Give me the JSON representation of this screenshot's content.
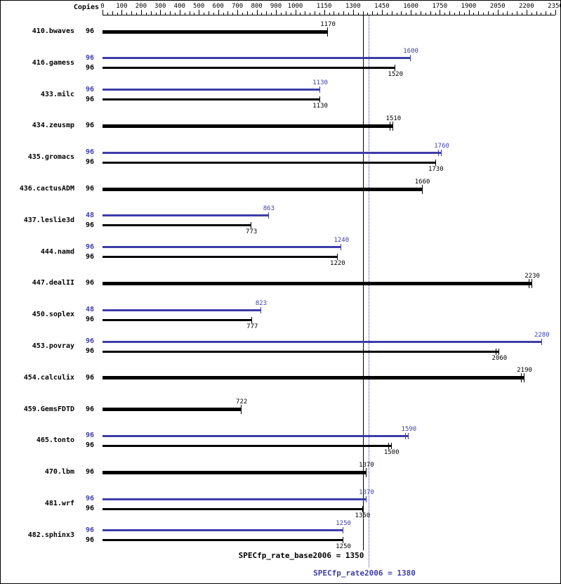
{
  "colors": {
    "peak": "#3d3daa",
    "base": "#000000"
  },
  "chart_data": {
    "type": "bar",
    "orientation": "horizontal",
    "copies_column_header": "Copies",
    "axis": {
      "position": "top",
      "min": 0,
      "max": 2350,
      "minor_step": 25,
      "tick_labels": [
        0,
        100,
        200,
        300,
        400,
        500,
        600,
        700,
        800,
        900,
        1000,
        1150,
        1300,
        1450,
        1600,
        1750,
        1900,
        2050,
        2200,
        2350
      ]
    },
    "benchmarks": [
      {
        "name": "410.bwaves",
        "bars": [
          {
            "series": "base",
            "copies": 96,
            "value": 1170,
            "end_ticks": 1
          }
        ]
      },
      {
        "name": "416.gamess",
        "bars": [
          {
            "series": "peak",
            "copies": 96,
            "value": 1600,
            "end_ticks": 1
          },
          {
            "series": "base",
            "copies": 96,
            "value": 1520,
            "end_ticks": 1
          }
        ]
      },
      {
        "name": "433.milc",
        "bars": [
          {
            "series": "peak",
            "copies": 96,
            "value": 1130,
            "end_ticks": 1
          },
          {
            "series": "base",
            "copies": 96,
            "value": 1130,
            "end_ticks": 1
          }
        ]
      },
      {
        "name": "434.zeusmp",
        "bars": [
          {
            "series": "base",
            "copies": 96,
            "value": 1510,
            "end_ticks": 2
          }
        ]
      },
      {
        "name": "435.gromacs",
        "bars": [
          {
            "series": "peak",
            "copies": 96,
            "value": 1760,
            "end_ticks": 2
          },
          {
            "series": "base",
            "copies": 96,
            "value": 1730,
            "end_ticks": 1
          }
        ]
      },
      {
        "name": "436.cactusADM",
        "bars": [
          {
            "series": "base",
            "copies": 96,
            "value": 1660,
            "end_ticks": 1
          }
        ]
      },
      {
        "name": "437.leslie3d",
        "bars": [
          {
            "series": "peak",
            "copies": 48,
            "value": 863,
            "end_ticks": 1
          },
          {
            "series": "base",
            "copies": 96,
            "value": 773,
            "end_ticks": 1
          }
        ]
      },
      {
        "name": "444.namd",
        "bars": [
          {
            "series": "peak",
            "copies": 96,
            "value": 1240,
            "end_ticks": 1
          },
          {
            "series": "base",
            "copies": 96,
            "value": 1220,
            "end_ticks": 1
          }
        ]
      },
      {
        "name": "447.dealII",
        "bars": [
          {
            "series": "base",
            "copies": 96,
            "value": 2230,
            "end_ticks": 2
          }
        ]
      },
      {
        "name": "450.soplex",
        "bars": [
          {
            "series": "peak",
            "copies": 48,
            "value": 823,
            "end_ticks": 1
          },
          {
            "series": "base",
            "copies": 96,
            "value": 777,
            "end_ticks": 1
          }
        ]
      },
      {
        "name": "453.povray",
        "bars": [
          {
            "series": "peak",
            "copies": 96,
            "value": 2280,
            "end_ticks": 1
          },
          {
            "series": "base",
            "copies": 96,
            "value": 2060,
            "end_ticks": 2
          }
        ]
      },
      {
        "name": "454.calculix",
        "bars": [
          {
            "series": "base",
            "copies": 96,
            "value": 2190,
            "end_ticks": 2
          }
        ]
      },
      {
        "name": "459.GemsFDTD",
        "bars": [
          {
            "series": "base",
            "copies": 96,
            "value": 722,
            "end_ticks": 1
          }
        ]
      },
      {
        "name": "465.tonto",
        "bars": [
          {
            "series": "peak",
            "copies": 96,
            "value": 1590,
            "end_ticks": 2
          },
          {
            "series": "base",
            "copies": 96,
            "value": 1500,
            "end_ticks": 2
          }
        ]
      },
      {
        "name": "470.lbm",
        "bars": [
          {
            "series": "base",
            "copies": 96,
            "value": 1370,
            "end_ticks": 1
          }
        ]
      },
      {
        "name": "481.wrf",
        "bars": [
          {
            "series": "peak",
            "copies": 96,
            "value": 1370,
            "end_ticks": 1
          },
          {
            "series": "base",
            "copies": 96,
            "value": 1350,
            "end_ticks": 1
          }
        ]
      },
      {
        "name": "482.sphinx3",
        "bars": [
          {
            "series": "peak",
            "copies": 96,
            "value": 1250,
            "end_ticks": 1
          },
          {
            "series": "base",
            "copies": 96,
            "value": 1250,
            "end_ticks": 1
          }
        ]
      }
    ],
    "reference_lines": {
      "base": {
        "label": "SPECfp_rate_base2006 = 1350",
        "value": 1350
      },
      "peak": {
        "label": "SPECfp_rate2006 = 1380",
        "value": 1380
      }
    }
  }
}
